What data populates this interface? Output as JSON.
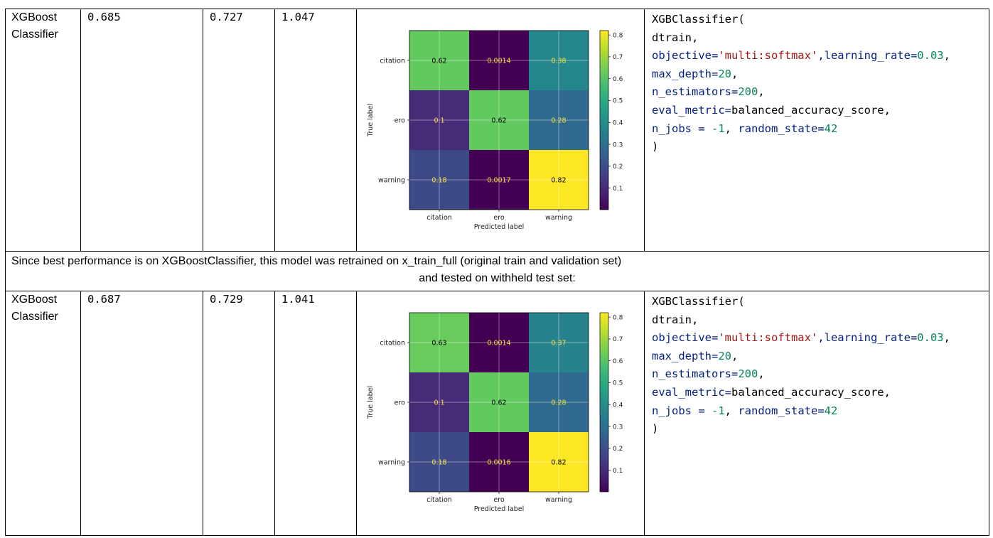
{
  "rows": [
    {
      "model": [
        "XGBoost",
        "Classifier"
      ],
      "metric1": "0.685",
      "metric2": "0.727",
      "metric3": "1.047",
      "code_lines": [
        [
          {
            "t": "XGBClassifier("
          }
        ],
        [
          {
            "t": "dtrain,"
          }
        ],
        [
          {
            "t": "objective=",
            "c": "kw"
          },
          {
            "t": "'multi:softmax'",
            "c": "str"
          },
          {
            "t": ",learning_rate=",
            "c": "kw"
          },
          {
            "t": "0.03",
            "c": "numc"
          },
          {
            "t": ","
          }
        ],
        [
          {
            "t": "max_depth=",
            "c": "kw"
          },
          {
            "t": "20",
            "c": "numc"
          },
          {
            "t": ","
          }
        ],
        [
          {
            "t": "n_estimators=",
            "c": "kw"
          },
          {
            "t": "200",
            "c": "numc"
          },
          {
            "t": ","
          }
        ],
        [
          {
            "t": "eval_metric=",
            "c": "kw"
          },
          {
            "t": "balanced_accuracy_score,"
          }
        ],
        [
          {
            "t": "n_jobs = ",
            "c": "kw"
          },
          {
            "t": "-1",
            "c": "numc"
          },
          {
            "t": ", "
          },
          {
            "t": "random_state=",
            "c": "kw"
          },
          {
            "t": "42",
            "c": "numc"
          }
        ],
        [
          {
            "t": ")"
          }
        ]
      ]
    },
    {
      "model": [
        "XGBoost",
        "Classifier"
      ],
      "metric1": "0.687",
      "metric2": "0.729",
      "metric3": "1.041",
      "code_lines": [
        [
          {
            "t": "XGBClassifier("
          }
        ],
        [
          {
            "t": "dtrain,"
          }
        ],
        [
          {
            "t": "objective=",
            "c": "kw"
          },
          {
            "t": "'multi:softmax'",
            "c": "str"
          },
          {
            "t": ",learning_rate=",
            "c": "kw"
          },
          {
            "t": "0.03",
            "c": "numc"
          },
          {
            "t": ","
          }
        ],
        [
          {
            "t": "max_depth=",
            "c": "kw"
          },
          {
            "t": "20",
            "c": "numc"
          },
          {
            "t": ","
          }
        ],
        [
          {
            "t": "n_estimators=",
            "c": "kw"
          },
          {
            "t": "200",
            "c": "numc"
          },
          {
            "t": ","
          }
        ],
        [
          {
            "t": "eval_metric=",
            "c": "kw"
          },
          {
            "t": "balanced_accuracy_score,"
          }
        ],
        [
          {
            "t": "n_jobs = ",
            "c": "kw"
          },
          {
            "t": "-1",
            "c": "numc"
          },
          {
            "t": ", "
          },
          {
            "t": "random_state=",
            "c": "kw"
          },
          {
            "t": "42",
            "c": "numc"
          }
        ],
        [
          {
            "t": ")"
          }
        ]
      ]
    }
  ],
  "note": {
    "line1": "Since best performance is on XGBoostClassifier, this model was retrained on x_train_full (original train and validation set)",
    "line2": "and tested on withheld test set:"
  },
  "chart_data": [
    {
      "type": "heatmap",
      "xlabel": "Predicted label",
      "ylabel": "True label",
      "x_categories": [
        "citation",
        "ero",
        "warning"
      ],
      "y_categories": [
        "citation",
        "ero",
        "warning"
      ],
      "values": [
        [
          0.62,
          0.0014,
          0.38
        ],
        [
          0.1,
          0.62,
          0.28
        ],
        [
          0.18,
          0.0017,
          0.82
        ]
      ],
      "cell_labels": [
        [
          "0.62",
          "0.0014",
          "0.38"
        ],
        [
          "0.1",
          "0.62",
          "0.28"
        ],
        [
          "0.18",
          "0.0017",
          "0.82"
        ]
      ],
      "colorbar_ticks": [
        0.1,
        0.2,
        0.3,
        0.4,
        0.5,
        0.6,
        0.7,
        0.8
      ],
      "colorbar_tick_labels": [
        "0.1",
        "0.2",
        "0.3",
        "0.4",
        "0.5",
        "0.6",
        "0.7",
        "0.8"
      ],
      "vmin": 0.0014,
      "vmax": 0.82,
      "colormap": "viridis",
      "grid": true
    },
    {
      "type": "heatmap",
      "xlabel": "Predicted label",
      "ylabel": "True label",
      "x_categories": [
        "citation",
        "ero",
        "warning"
      ],
      "y_categories": [
        "citation",
        "ero",
        "warning"
      ],
      "values": [
        [
          0.63,
          0.0014,
          0.37
        ],
        [
          0.1,
          0.62,
          0.28
        ],
        [
          0.18,
          0.0016,
          0.82
        ]
      ],
      "cell_labels": [
        [
          "0.63",
          "0.0014",
          "0.37"
        ],
        [
          "0.1",
          "0.62",
          "0.28"
        ],
        [
          "0.18",
          "0.0016",
          "0.82"
        ]
      ],
      "colorbar_ticks": [
        0.1,
        0.2,
        0.3,
        0.4,
        0.5,
        0.6,
        0.7,
        0.8
      ],
      "colorbar_tick_labels": [
        "0.1",
        "0.2",
        "0.3",
        "0.4",
        "0.5",
        "0.6",
        "0.7",
        "0.8"
      ],
      "vmin": 0.0014,
      "vmax": 0.82,
      "colormap": "viridis",
      "grid": true
    }
  ]
}
